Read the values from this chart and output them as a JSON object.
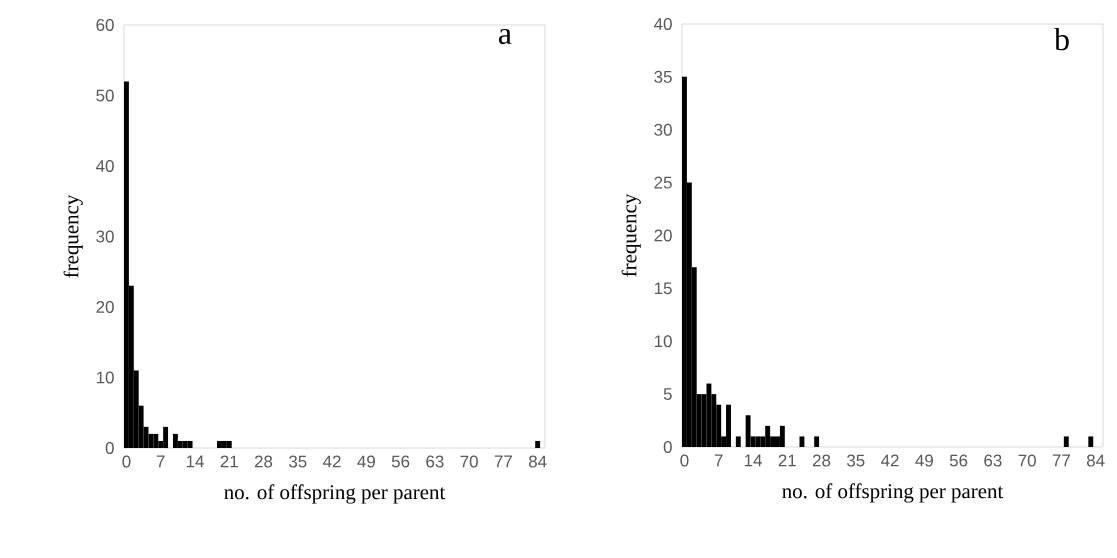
{
  "chart_data": [
    {
      "type": "histogram",
      "title": "a",
      "xlabel": "no. of offspring per parent",
      "ylabel": "frequency",
      "color": "#000000",
      "bins": [
        -0.5,
        0.5,
        1.5,
        2.5,
        3.5,
        4.5,
        5.5,
        6.5,
        7.5,
        8.5,
        9.5,
        10.5,
        11.5,
        12.5,
        13.5,
        14.5,
        15.5,
        16.5,
        17.5,
        18.5,
        19.5,
        20.5,
        21.5,
        22.5,
        23.5,
        24.5,
        25.5,
        26.5,
        27.5,
        28.5,
        29.5,
        30.5,
        31.5,
        32.5,
        33.5,
        34.5,
        35.5,
        36.5,
        37.5,
        38.5,
        39.5,
        40.5,
        41.5,
        42.5,
        43.5,
        44.5,
        45.5,
        46.5,
        47.5,
        48.5,
        49.5,
        50.5,
        51.5,
        52.5,
        53.5,
        54.5,
        55.5,
        56.5,
        57.5,
        58.5,
        59.5,
        60.5,
        61.5,
        62.5,
        63.5,
        64.5,
        65.5,
        66.5,
        67.5,
        68.5,
        69.5,
        70.5,
        71.5,
        72.5,
        73.5,
        74.5,
        75.5,
        76.5,
        77.5,
        78.5,
        79.5,
        80.5,
        81.5,
        82.5,
        83.5,
        84.5,
        85.5
      ],
      "values": [
        52,
        23,
        11,
        6,
        3,
        2,
        2,
        1,
        3,
        0,
        2,
        1,
        1,
        1,
        0,
        0,
        0,
        0,
        0,
        1,
        1,
        1,
        0,
        0,
        0,
        0,
        0,
        0,
        0,
        0,
        0,
        0,
        0,
        0,
        0,
        0,
        0,
        0,
        0,
        0,
        0,
        0,
        0,
        0,
        0,
        0,
        0,
        0,
        0,
        0,
        0,
        0,
        0,
        0,
        0,
        0,
        0,
        0,
        0,
        0,
        0,
        0,
        0,
        0,
        0,
        0,
        0,
        0,
        0,
        0,
        0,
        0,
        0,
        0,
        0,
        0,
        0,
        0,
        0,
        0,
        0,
        0,
        0,
        0,
        1,
        0
      ],
      "xlim": [
        -0.5,
        85.5
      ],
      "xticks": [
        0,
        7,
        14,
        21,
        28,
        35,
        42,
        49,
        56,
        63,
        70,
        77,
        84
      ],
      "ylim": [
        0,
        60
      ],
      "yticks": [
        0,
        10,
        20,
        30,
        40,
        50,
        60
      ],
      "grid": false
    },
    {
      "type": "histogram",
      "title": "b",
      "xlabel": "no. of offspring per parent",
      "ylabel": "frequency",
      "color": "#000000",
      "bins": [
        -0.5,
        0.5,
        1.5,
        2.5,
        3.5,
        4.5,
        5.5,
        6.5,
        7.5,
        8.5,
        9.5,
        10.5,
        11.5,
        12.5,
        13.5,
        14.5,
        15.5,
        16.5,
        17.5,
        18.5,
        19.5,
        20.5,
        21.5,
        22.5,
        23.5,
        24.5,
        25.5,
        26.5,
        27.5,
        28.5,
        29.5,
        30.5,
        31.5,
        32.5,
        33.5,
        34.5,
        35.5,
        36.5,
        37.5,
        38.5,
        39.5,
        40.5,
        41.5,
        42.5,
        43.5,
        44.5,
        45.5,
        46.5,
        47.5,
        48.5,
        49.5,
        50.5,
        51.5,
        52.5,
        53.5,
        54.5,
        55.5,
        56.5,
        57.5,
        58.5,
        59.5,
        60.5,
        61.5,
        62.5,
        63.5,
        64.5,
        65.5,
        66.5,
        67.5,
        68.5,
        69.5,
        70.5,
        71.5,
        72.5,
        73.5,
        74.5,
        75.5,
        76.5,
        77.5,
        78.5,
        79.5,
        80.5,
        81.5,
        82.5,
        83.5,
        84.5,
        85.5
      ],
      "values": [
        35,
        25,
        17,
        5,
        5,
        6,
        5,
        4,
        1,
        4,
        0,
        1,
        0,
        3,
        1,
        1,
        1,
        2,
        1,
        1,
        2,
        0,
        0,
        0,
        1,
        0,
        0,
        1,
        0,
        0,
        0,
        0,
        0,
        0,
        0,
        0,
        0,
        0,
        0,
        0,
        0,
        0,
        0,
        0,
        0,
        0,
        0,
        0,
        0,
        0,
        0,
        0,
        0,
        0,
        0,
        0,
        0,
        0,
        0,
        0,
        0,
        0,
        0,
        0,
        0,
        0,
        0,
        0,
        0,
        0,
        0,
        0,
        0,
        0,
        0,
        0,
        0,
        0,
        1,
        0,
        0,
        0,
        0,
        1,
        0,
        0
      ],
      "xlim": [
        -0.5,
        85.5
      ],
      "xticks": [
        0,
        7,
        14,
        21,
        28,
        35,
        42,
        49,
        56,
        63,
        70,
        77,
        84
      ],
      "ylim": [
        0,
        40
      ],
      "yticks": [
        0,
        5,
        10,
        15,
        20,
        25,
        30,
        35,
        40
      ],
      "grid": false
    }
  ]
}
